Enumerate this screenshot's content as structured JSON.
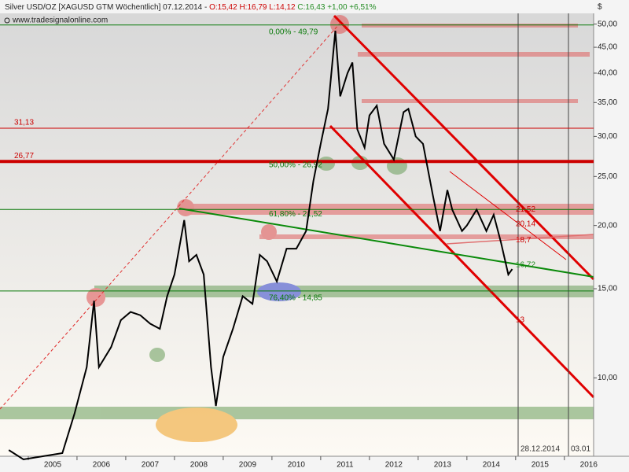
{
  "chart_data": {
    "type": "line",
    "title": "Silver USD/OZ [XAGUSD GTM  Wöchentlich] 07.12.2014 -",
    "ohlc": "O:15,42 H:16,79 L:14,12",
    "change": "C:16,43 +1,00 +6,51%",
    "source": "www.tradesignalonline.com",
    "y_unit": "$",
    "log_scale": true,
    "color": "#000000",
    "x": [
      2004.6,
      2004.9,
      2005.3,
      2005.7,
      2005.95,
      2006.2,
      2006.35,
      2006.45,
      2006.7,
      2006.9,
      2007.1,
      2007.3,
      2007.5,
      2007.7,
      2007.85,
      2008.0,
      2008.2,
      2008.3,
      2008.45,
      2008.6,
      2008.75,
      2008.85,
      2009.0,
      2009.2,
      2009.4,
      2009.6,
      2009.75,
      2009.9,
      2010.1,
      2010.3,
      2010.5,
      2010.7,
      2010.85,
      2011.0,
      2011.15,
      2011.3,
      2011.4,
      2011.55,
      2011.65,
      2011.75,
      2011.9,
      2012.0,
      2012.15,
      2012.3,
      2012.5,
      2012.7,
      2012.8,
      2012.95,
      2013.1,
      2013.3,
      2013.45,
      2013.6,
      2013.7,
      2013.9,
      2014.0,
      2014.2,
      2014.4,
      2014.55,
      2014.7,
      2014.85,
      2014.93
    ],
    "values": [
      7.2,
      6.9,
      7.0,
      7.1,
      8.5,
      10.5,
      14.2,
      10.5,
      11.5,
      13.0,
      13.5,
      13.3,
      12.8,
      12.5,
      14.5,
      16.0,
      20.5,
      17.0,
      17.5,
      16.0,
      10.5,
      8.8,
      11.0,
      12.5,
      14.5,
      14.0,
      17.5,
      17.0,
      15.5,
      18.0,
      18.0,
      19.5,
      24.5,
      29.0,
      34.0,
      48.5,
      36.0,
      40.0,
      42.0,
      31.0,
      28.5,
      33.0,
      34.5,
      29.0,
      27.0,
      33.5,
      34.0,
      30.0,
      29.0,
      23.0,
      19.5,
      23.5,
      21.5,
      19.5,
      20.0,
      21.5,
      19.5,
      21.0,
      18.5,
      16.0,
      16.4
    ],
    "xlim": [
      2004.42,
      2016.6
    ],
    "xticks": [
      2005,
      2006,
      2007,
      2008,
      2009,
      2010,
      2011,
      2012,
      2013,
      2014,
      2015,
      2016
    ],
    "ylim": [
      7,
      52.5
    ],
    "yticks": [
      {
        "value": 10,
        "label": "10,00"
      },
      {
        "value": 15,
        "label": "15,00"
      },
      {
        "value": 20,
        "label": "20,00"
      },
      {
        "value": 25,
        "label": "25,00"
      },
      {
        "value": 30,
        "label": "30,00"
      },
      {
        "value": 35,
        "label": "35,00"
      },
      {
        "value": 40,
        "label": "40,00"
      },
      {
        "value": 45,
        "label": "45,00"
      },
      {
        "value": 50,
        "label": "50,00"
      }
    ],
    "levels": [
      {
        "value": 31.13,
        "label": "31,13",
        "color": "#cc0000"
      },
      {
        "value": 26.77,
        "label": "26,77",
        "color": "#cc0000"
      }
    ],
    "fib_levels": [
      {
        "value": 49.79,
        "label": "0,00% - 49,79"
      },
      {
        "value": 26.92,
        "label": "50,00% - 26,92"
      },
      {
        "value": 21.52,
        "label": "61,80% - 21,52"
      },
      {
        "value": 14.85,
        "label": "76,40% - 14,85"
      }
    ],
    "price_labels": [
      {
        "value": 21.52,
        "label": "21,52",
        "color": "#cc0000"
      },
      {
        "value": 20.14,
        "label": "20,14",
        "color": "#cc0000"
      },
      {
        "value": 18.7,
        "label": "18,7",
        "color": "#cc0000"
      },
      {
        "value": 16.72,
        "label": "16,72",
        "color": "#228b22"
      },
      {
        "value": 13,
        "label": "13",
        "color": "#cc0000"
      }
    ],
    "date_markers": [
      "28.12.2014",
      "03.01"
    ]
  }
}
